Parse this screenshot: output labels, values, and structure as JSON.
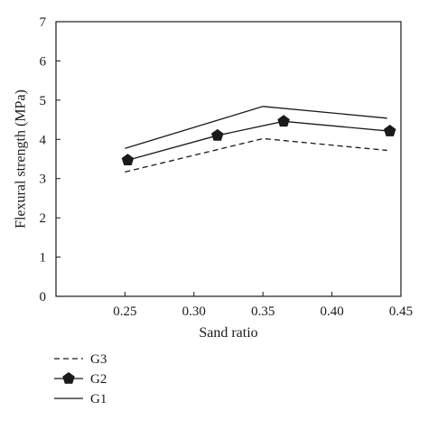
{
  "chart_data": {
    "type": "line",
    "title": "",
    "xlabel": "Sand ratio",
    "ylabel": "Flexural strength (MPa)",
    "xlim": [
      0.2,
      0.45
    ],
    "ylim": [
      0,
      7
    ],
    "xticks": [
      "0.25",
      "0.30",
      "0.35",
      "0.40",
      "0.45"
    ],
    "yticks": [
      "0",
      "1",
      "2",
      "3",
      "4",
      "5",
      "6",
      "7"
    ],
    "grid": false,
    "legend_position": "bottom-left",
    "series": [
      {
        "name": "G3",
        "style": "dashed",
        "marker": "none",
        "color": "#1a1a1a",
        "points": [
          [
            0.25,
            3.17
          ],
          [
            0.35,
            4.02
          ],
          [
            0.44,
            3.72
          ]
        ]
      },
      {
        "name": "G2",
        "style": "solid",
        "marker": "pentagon",
        "color": "#1a1a1a",
        "points": [
          [
            0.252,
            3.47
          ],
          [
            0.317,
            4.1
          ],
          [
            0.365,
            4.46
          ],
          [
            0.442,
            4.21
          ]
        ]
      },
      {
        "name": "G1",
        "style": "solid",
        "marker": "none",
        "color": "#1a1a1a",
        "points": [
          [
            0.25,
            3.77
          ],
          [
            0.35,
            4.84
          ],
          [
            0.44,
            4.54
          ]
        ]
      }
    ],
    "legend_order": [
      "G3",
      "G2",
      "G1"
    ]
  }
}
